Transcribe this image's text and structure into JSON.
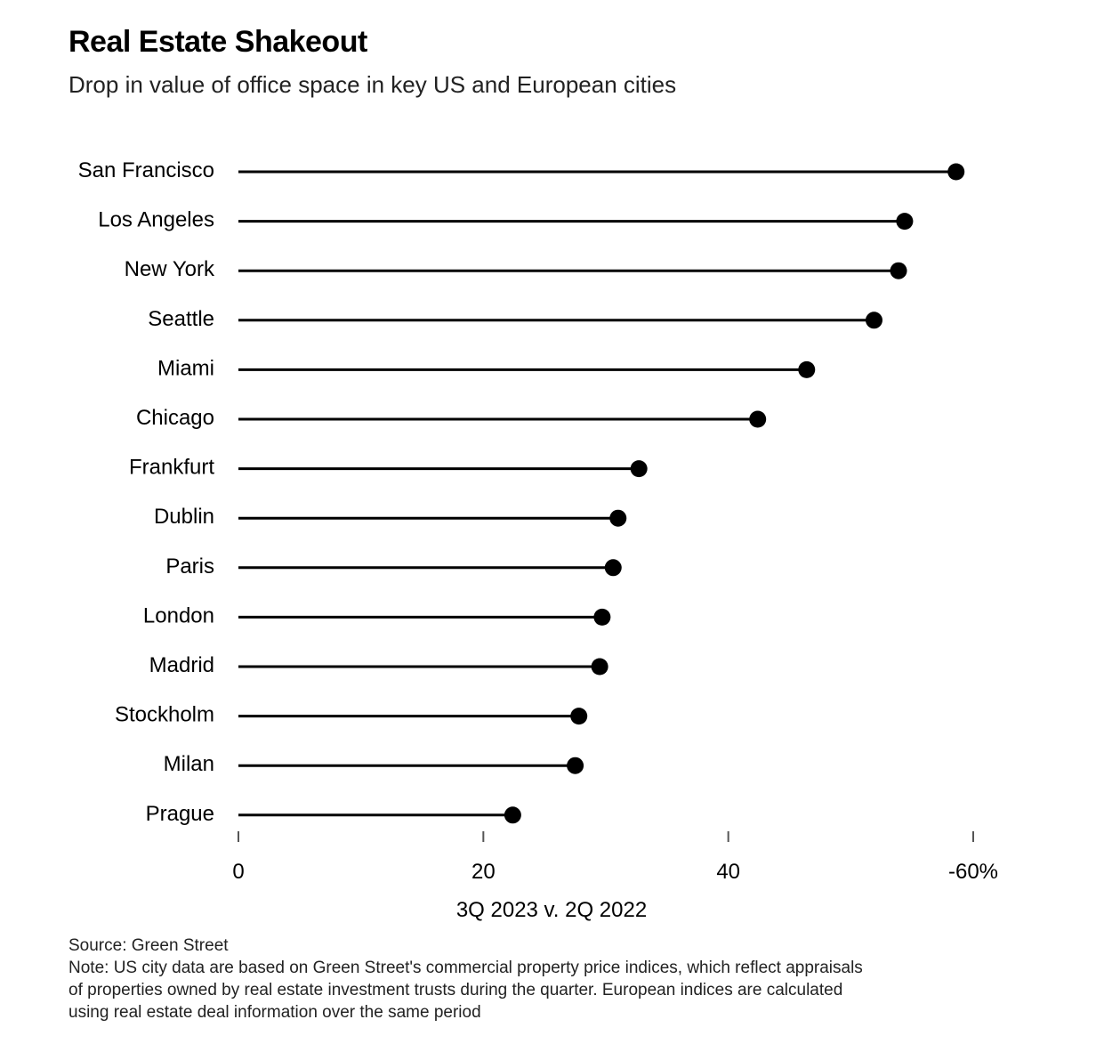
{
  "header": {
    "title": "Real Estate Shakeout",
    "subtitle": "Drop in value of office space in key US and European cities"
  },
  "footer": {
    "source": "Source: Green Street",
    "note_lines": [
      "Note: US city data are based on Green Street's commercial property price indices, which reflect appraisals",
      "of properties owned by real estate investment trusts during the quarter. European indices are calculated",
      "using real estate deal information over the same period"
    ]
  },
  "chart_data": {
    "type": "lollipop",
    "title": "Real Estate Shakeout",
    "subtitle": "Drop in value of office space in key US and European cities",
    "xlabel": "3Q 2023 v. 2Q 2022",
    "ylabel": "",
    "xlim": [
      0,
      60
    ],
    "xticks": [
      0,
      20,
      40,
      60
    ],
    "xtick_labels": [
      "0",
      "20",
      "40",
      "-60%"
    ],
    "grid": false,
    "legend": "none",
    "categories": [
      "San Francisco",
      "Los Angeles",
      "New York",
      "Seattle",
      "Miami",
      "Chicago",
      "Frankfurt",
      "Dublin",
      "Paris",
      "London",
      "Madrid",
      "Stockholm",
      "Milan",
      "Prague"
    ],
    "values": [
      58.6,
      54.4,
      53.9,
      51.9,
      46.4,
      42.4,
      32.7,
      31.0,
      30.6,
      29.7,
      29.5,
      27.8,
      27.5,
      22.4
    ],
    "colors": {
      "mark": "#000000",
      "text": "#000000",
      "axis": "#555555"
    }
  }
}
